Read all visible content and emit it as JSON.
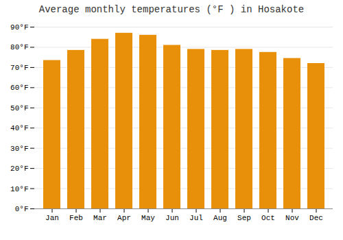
{
  "chart_data": {
    "type": "bar",
    "title": "Average monthly temperatures (°F ) in Hosakote",
    "categories": [
      "Jan",
      "Feb",
      "Mar",
      "Apr",
      "May",
      "Jun",
      "Jul",
      "Aug",
      "Sep",
      "Oct",
      "Nov",
      "Dec"
    ],
    "values": [
      73.5,
      78.5,
      84,
      87,
      86,
      81,
      79,
      78.5,
      79,
      77.5,
      74.5,
      72
    ],
    "color": "#E8900A",
    "ylim": [
      0,
      90
    ],
    "yticks": [
      {
        "value": 0,
        "label": "0°F"
      },
      {
        "value": 10,
        "label": "10°F"
      },
      {
        "value": 20,
        "label": "20°F"
      },
      {
        "value": 30,
        "label": "30°F"
      },
      {
        "value": 40,
        "label": "40°F"
      },
      {
        "value": 50,
        "label": "50°F"
      },
      {
        "value": 60,
        "label": "60°F"
      },
      {
        "value": 70,
        "label": "70°F"
      },
      {
        "value": 80,
        "label": "80°F"
      },
      {
        "value": 90,
        "label": "90°F"
      }
    ],
    "grid": true
  }
}
